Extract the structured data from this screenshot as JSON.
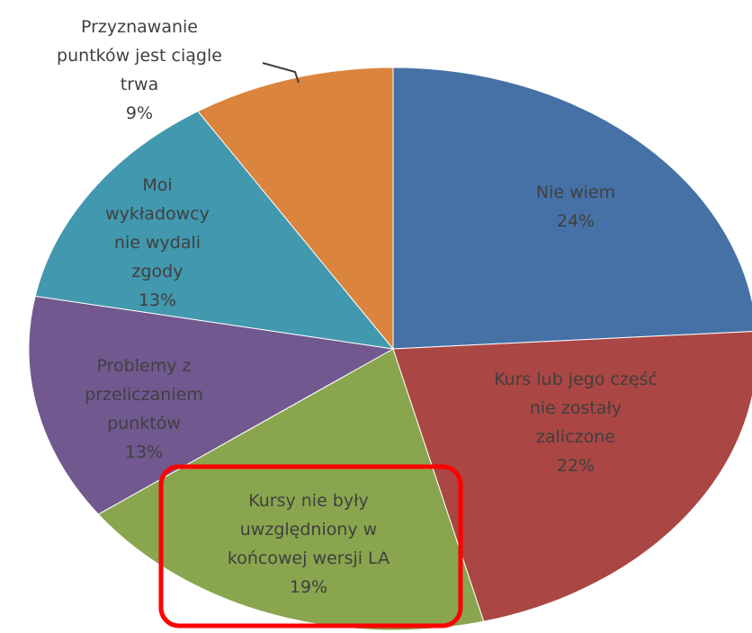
{
  "chart_data": {
    "type": "pie",
    "categories": [
      "Nie wiem",
      "Kurs lub jego część\nnie zostały zaliczone",
      "Kursy nie były\nuwzględniony w\nkońcowej wersji LA",
      "Problemy z\nprzeliczaniem\npunktów",
      "Moi\nwykładowcy\nnie wydali\nzgody",
      "Przyznawanie\npuntków jest ciągle\ntrwa"
    ],
    "values": [
      24,
      22,
      19,
      13,
      13,
      9
    ],
    "value_labels": [
      "24%",
      "22%",
      "19%",
      "13%",
      "13%",
      "9%"
    ],
    "colors": [
      "#4571a6",
      "#aa4643",
      "#89a54e",
      "#71588f",
      "#4198af",
      "#db843d"
    ]
  }
}
